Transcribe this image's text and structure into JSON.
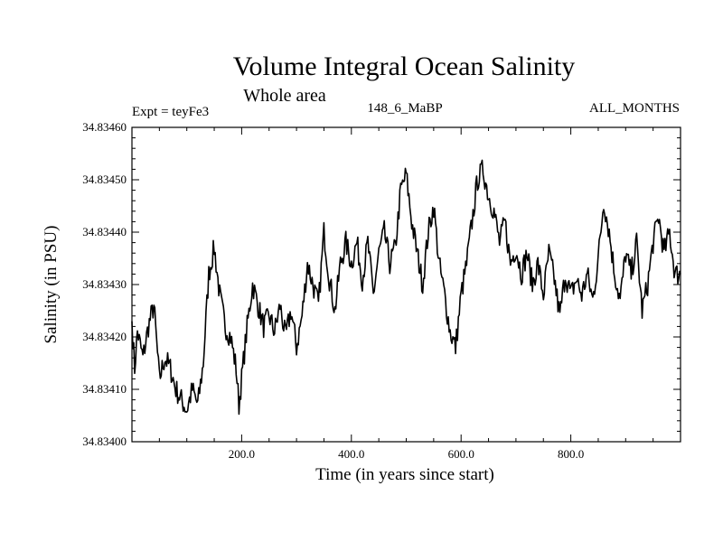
{
  "chart_data": {
    "type": "line",
    "title": "Volume Integral Ocean Salinity",
    "subtitle": "Whole area",
    "experiment": "Expt = teyFe3",
    "run_label": "148_6_MaBP",
    "period": "ALL_MONTHS",
    "xlabel": "Time (in years since start)",
    "ylabel": "Salinity (in PSU)",
    "xlim": [
      0,
      1000
    ],
    "ylim": [
      34.834,
      34.8346
    ],
    "x_ticks": [
      200,
      400,
      600,
      800
    ],
    "x_tick_labels": [
      "200.0",
      "400.0",
      "600.0",
      "800.0"
    ],
    "y_ticks": [
      34.834,
      34.8341,
      34.8342,
      34.8343,
      34.8344,
      34.8345,
      34.8346
    ],
    "y_tick_labels": [
      "34.83400",
      "34.83410",
      "34.83420",
      "34.83430",
      "34.83440",
      "34.83450",
      "34.83460"
    ],
    "series": [
      {
        "name": "salinity",
        "x": [
          0,
          5,
          10,
          20,
          30,
          40,
          50,
          60,
          70,
          80,
          90,
          100,
          110,
          120,
          130,
          140,
          150,
          160,
          170,
          180,
          190,
          195,
          200,
          210,
          220,
          230,
          240,
          250,
          260,
          270,
          280,
          290,
          300,
          310,
          320,
          330,
          340,
          350,
          360,
          370,
          380,
          390,
          400,
          410,
          420,
          430,
          440,
          450,
          460,
          470,
          480,
          490,
          500,
          510,
          520,
          530,
          540,
          550,
          560,
          570,
          580,
          590,
          600,
          610,
          620,
          630,
          640,
          650,
          660,
          670,
          680,
          690,
          700,
          710,
          720,
          730,
          740,
          750,
          760,
          770,
          780,
          790,
          800,
          810,
          820,
          830,
          840,
          850,
          860,
          870,
          880,
          890,
          900,
          910,
          920,
          930,
          940,
          950,
          960,
          970,
          980,
          990,
          1000
        ],
        "values": [
          34.83423,
          34.83414,
          34.83421,
          34.83416,
          34.83422,
          34.83426,
          34.83412,
          34.83416,
          34.83414,
          34.8341,
          34.83408,
          34.83406,
          34.8341,
          34.83407,
          34.83415,
          34.83432,
          34.83437,
          34.83428,
          34.83422,
          34.8342,
          34.83414,
          34.83407,
          34.83412,
          34.83422,
          34.8343,
          34.83426,
          34.83422,
          34.83424,
          34.83421,
          34.83426,
          34.8342,
          34.83425,
          34.83418,
          34.83424,
          34.83434,
          34.8343,
          34.83426,
          34.8344,
          34.83431,
          34.83425,
          34.83434,
          34.83438,
          34.83434,
          34.83438,
          34.83431,
          34.83438,
          34.83428,
          34.83436,
          34.8344,
          34.83434,
          34.83437,
          34.83448,
          34.83451,
          34.83442,
          34.83436,
          34.8343,
          34.8344,
          34.83445,
          34.83434,
          34.83428,
          34.83421,
          34.83418,
          34.83428,
          34.83434,
          34.83442,
          34.8345,
          34.83452,
          34.83447,
          34.83444,
          34.83438,
          34.83442,
          34.83434,
          34.83437,
          34.83432,
          34.83436,
          34.8343,
          34.83434,
          34.83428,
          34.83436,
          34.83431,
          34.83424,
          34.83432,
          34.83428,
          34.83431,
          34.83428,
          34.83432,
          34.83427,
          34.83435,
          34.83446,
          34.8344,
          34.83432,
          34.83427,
          34.83436,
          34.83432,
          34.83438,
          34.83425,
          34.8343,
          34.83438,
          34.83443,
          34.83436,
          34.8344,
          34.83432,
          34.83432
        ]
      }
    ]
  }
}
